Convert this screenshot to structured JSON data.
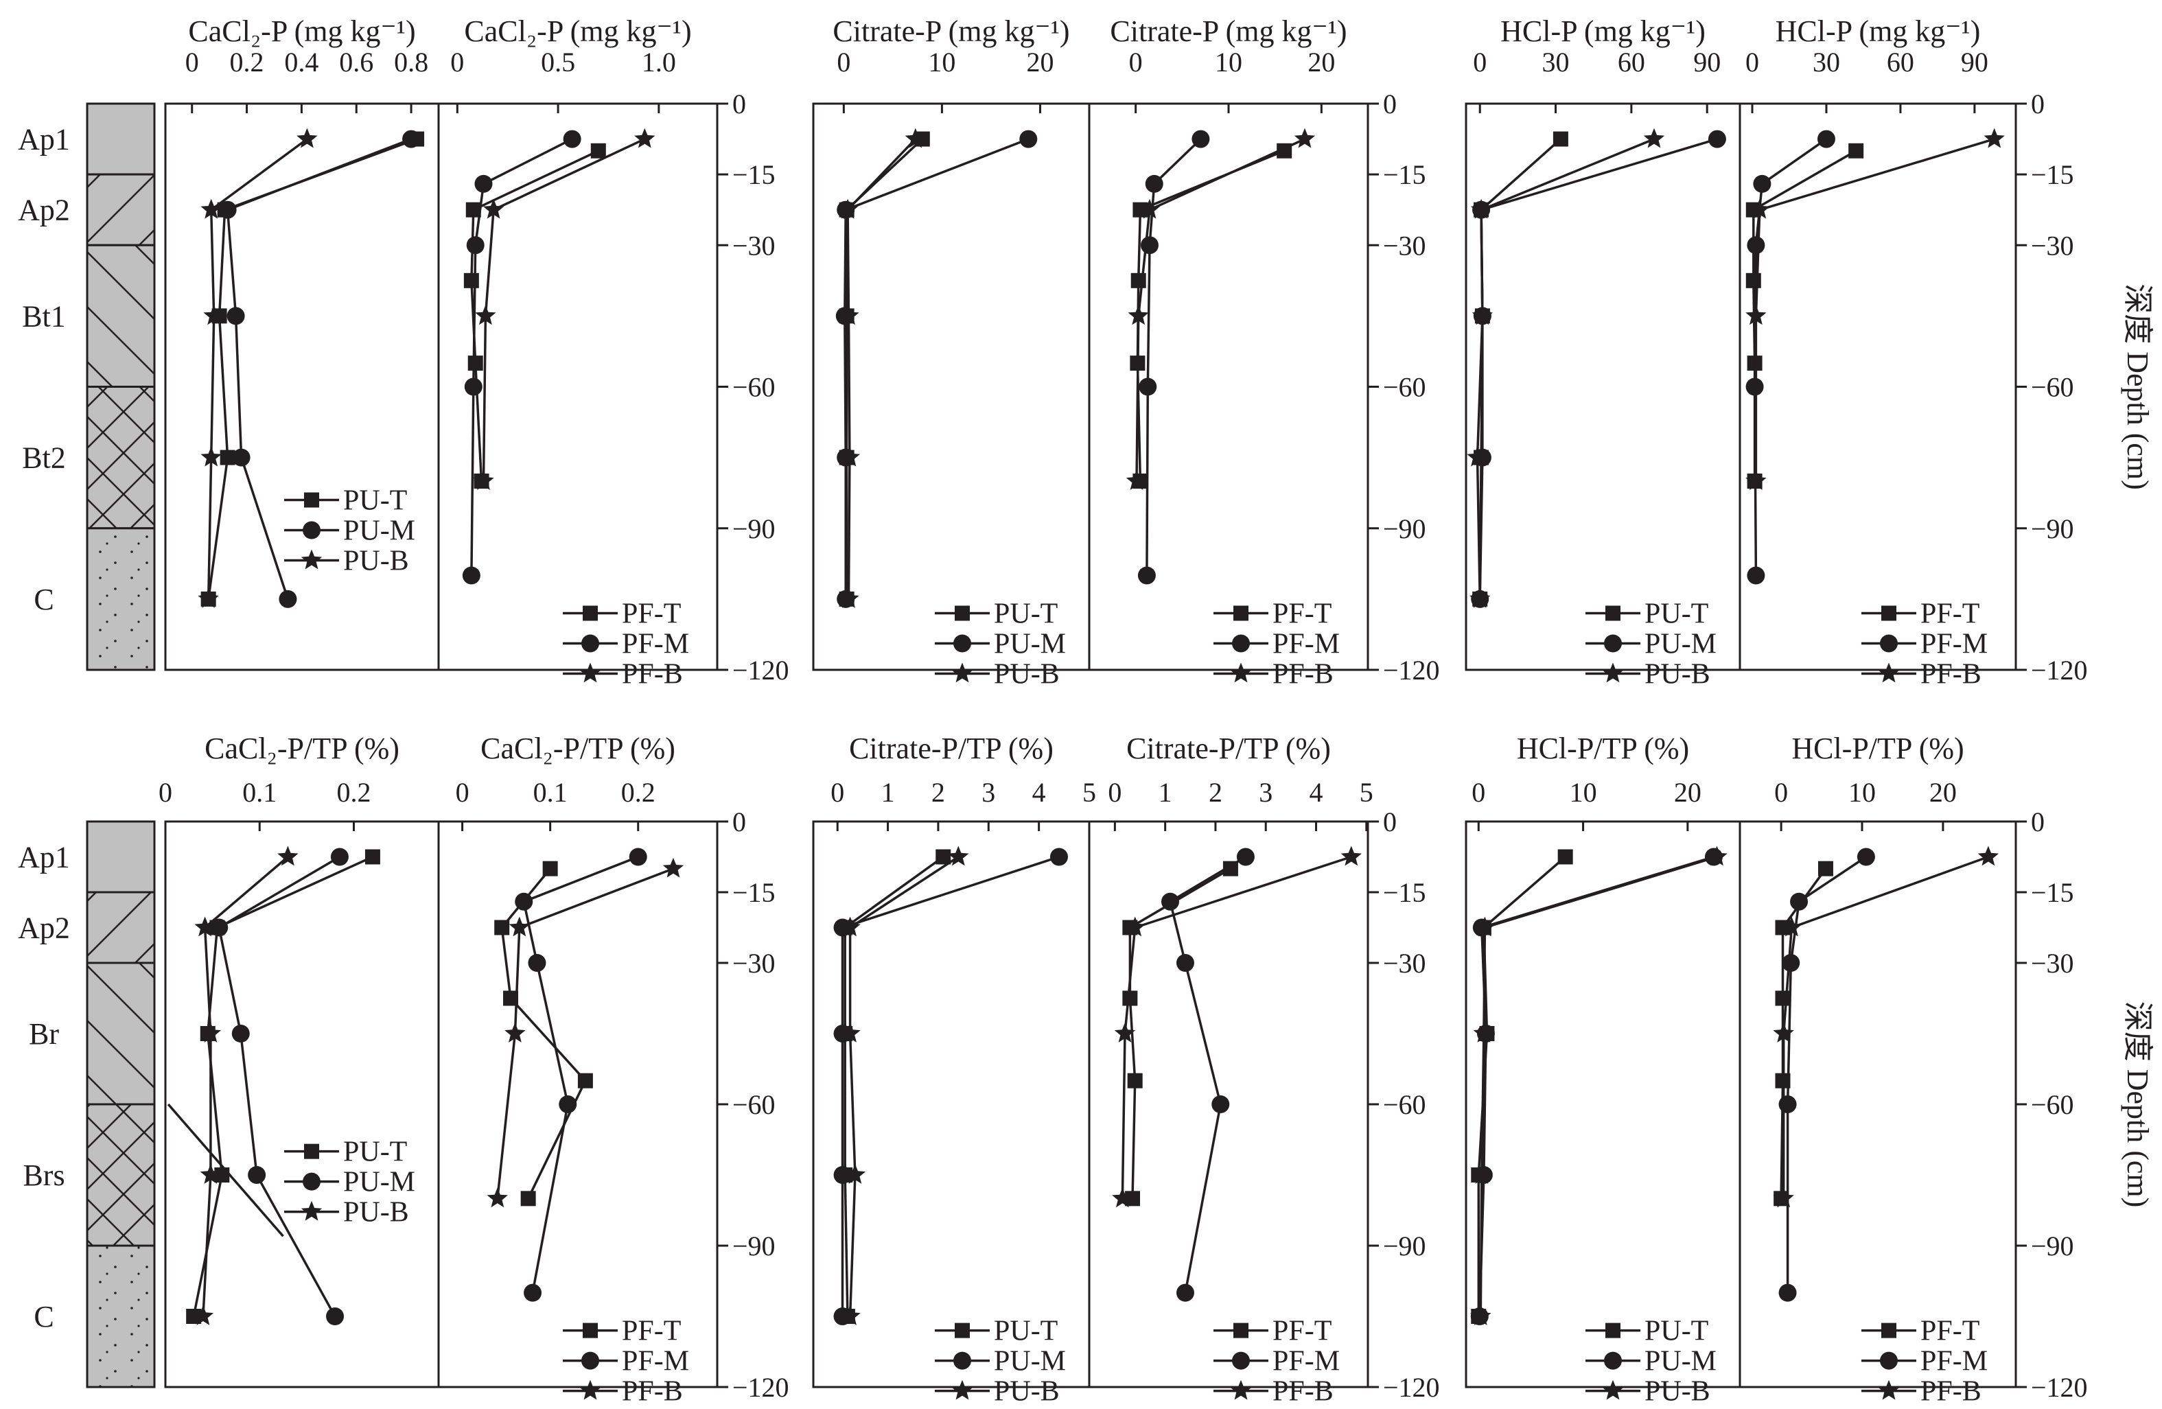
{
  "y_axis": {
    "label": "深度 Depth (cm)",
    "ticks": [
      0,
      -15,
      -30,
      -60,
      -90,
      -120
    ],
    "tick_labels": [
      "0",
      "−15",
      "−30",
      "−60",
      "−90",
      "−120"
    ],
    "ylim": [
      -120,
      0
    ]
  },
  "profiles": [
    {
      "horizons": [
        {
          "name": "Ap1",
          "top": 0,
          "bottom": -15,
          "pattern": "plain"
        },
        {
          "name": "Ap2",
          "top": -15,
          "bottom": -30,
          "pattern": "slash"
        },
        {
          "name": "Bt1",
          "top": -30,
          "bottom": -60,
          "pattern": "backslash"
        },
        {
          "name": "Bt2",
          "top": -60,
          "bottom": -90,
          "pattern": "cross"
        },
        {
          "name": "C",
          "top": -90,
          "bottom": -120,
          "pattern": "dots"
        }
      ]
    },
    {
      "horizons": [
        {
          "name": "Ap1",
          "top": 0,
          "bottom": -15,
          "pattern": "plain"
        },
        {
          "name": "Ap2",
          "top": -15,
          "bottom": -30,
          "pattern": "slash"
        },
        {
          "name": "Br",
          "top": -30,
          "bottom": -60,
          "pattern": "backslash"
        },
        {
          "name": "Brs",
          "top": -60,
          "bottom": -90,
          "pattern": "cross"
        },
        {
          "name": "C",
          "top": -90,
          "bottom": -120,
          "pattern": "dots"
        }
      ]
    }
  ],
  "colors": {
    "line": "#231f20",
    "profile_fill": "#c0c0c0"
  },
  "chart_data": [
    {
      "type": "line",
      "row": 0,
      "title": "CaCl₂-P (mg kg⁻¹)",
      "xlim": [
        -0.097,
        0.9
      ],
      "xticks": [
        0,
        0.2,
        0.4,
        0.6,
        0.8
      ],
      "xtick_labels": [
        "0",
        "0.2",
        "0.4",
        "0.6",
        "0.8"
      ],
      "legend": "center-right",
      "series": [
        {
          "name": "PU-T",
          "marker": "square",
          "x": [
            0.82,
            0.12,
            0.1,
            0.13,
            0.06
          ],
          "y": [
            -7.5,
            -22.5,
            -45,
            -75,
            -105
          ]
        },
        {
          "name": "PU-M",
          "marker": "circle",
          "x": [
            0.8,
            0.13,
            0.16,
            0.18,
            0.35
          ],
          "y": [
            -7.5,
            -22.5,
            -45,
            -75,
            -105
          ]
        },
        {
          "name": "PU-B",
          "marker": "star",
          "x": [
            0.42,
            0.07,
            0.08,
            0.07,
            0.06
          ],
          "y": [
            -7.5,
            -22.5,
            -45,
            -75,
            -105
          ]
        }
      ]
    },
    {
      "type": "line",
      "row": 0,
      "title": "CaCl₂-P (mg kg⁻¹)",
      "xlim": [
        -0.093,
        1.29
      ],
      "xticks": [
        0,
        0.5,
        1.0
      ],
      "xtick_labels": [
        "0",
        "0.5",
        "1.0"
      ],
      "legend": "bottom-right",
      "series": [
        {
          "name": "PF-T",
          "marker": "square",
          "x": [
            0.7,
            0.08,
            0.07,
            0.09,
            0.12
          ],
          "y": [
            -10,
            -22.5,
            -37.5,
            -55,
            -80
          ]
        },
        {
          "name": "PF-M",
          "marker": "circle",
          "x": [
            0.57,
            0.13,
            0.09,
            0.08,
            0.07
          ],
          "y": [
            -7.5,
            -17,
            -30,
            -60,
            -100
          ]
        },
        {
          "name": "PF-B",
          "marker": "star",
          "x": [
            0.93,
            0.18,
            0.14,
            0.13
          ],
          "y": [
            -7.5,
            -22.5,
            -45,
            -80
          ]
        }
      ]
    },
    {
      "type": "line",
      "row": 0,
      "title": "Citrate-P (mg kg⁻¹)",
      "xlim": [
        -3.1,
        25
      ],
      "xticks": [
        0,
        10,
        20
      ],
      "xtick_labels": [
        "0",
        "10",
        "20"
      ],
      "legend": "bottom-right",
      "series": [
        {
          "name": "PU-T",
          "marker": "square",
          "x": [
            8.0,
            0.3,
            0.3,
            0.3,
            0.3
          ],
          "y": [
            -7.5,
            -22.5,
            -45,
            -75,
            -105
          ]
        },
        {
          "name": "PU-M",
          "marker": "circle",
          "x": [
            18.8,
            0.2,
            0.1,
            0.2,
            0.2
          ],
          "y": [
            -7.5,
            -22.5,
            -45,
            -75,
            -105
          ]
        },
        {
          "name": "PU-B",
          "marker": "star",
          "x": [
            7.3,
            0.4,
            0.5,
            0.6,
            0.5
          ],
          "y": [
            -7.5,
            -22.5,
            -45,
            -75,
            -105
          ]
        }
      ]
    },
    {
      "type": "line",
      "row": 0,
      "title": "Citrate-P (mg kg⁻¹)",
      "xlim": [
        -5,
        25
      ],
      "xticks": [
        0,
        10,
        20
      ],
      "xtick_labels": [
        "0",
        "10",
        "20"
      ],
      "legend": "bottom-right",
      "series": [
        {
          "name": "PF-T",
          "marker": "square",
          "x": [
            16.0,
            0.5,
            0.3,
            0.2,
            0.5
          ],
          "y": [
            -10,
            -22.5,
            -37.5,
            -55,
            -80
          ]
        },
        {
          "name": "PF-M",
          "marker": "circle",
          "x": [
            7.0,
            2.0,
            1.5,
            1.3,
            1.2
          ],
          "y": [
            -7.5,
            -17,
            -30,
            -60,
            -100
          ]
        },
        {
          "name": "PF-B",
          "marker": "star",
          "x": [
            18.2,
            1.5,
            0.3,
            0.1
          ],
          "y": [
            -7.5,
            -22.5,
            -45,
            -80
          ]
        }
      ]
    },
    {
      "type": "line",
      "row": 0,
      "title": "HCl-P (mg kg⁻¹)",
      "xlim": [
        -5.5,
        103
      ],
      "xticks": [
        0,
        30,
        60,
        90
      ],
      "xtick_labels": [
        "0",
        "30",
        "60",
        "90"
      ],
      "legend": "bottom-right",
      "series": [
        {
          "name": "PU-T",
          "marker": "square",
          "x": [
            32,
            0.5,
            1,
            0.5,
            0
          ],
          "y": [
            -7.5,
            -22.5,
            -45,
            -75,
            -105
          ]
        },
        {
          "name": "PU-M",
          "marker": "circle",
          "x": [
            94,
            0.5,
            1,
            1,
            0
          ],
          "y": [
            -7.5,
            -22.5,
            -45,
            -75,
            -105
          ]
        },
        {
          "name": "PU-B",
          "marker": "star",
          "x": [
            69,
            0.5,
            1,
            -1,
            0
          ],
          "y": [
            -7.5,
            -22.5,
            -45,
            -75,
            -105
          ]
        }
      ]
    },
    {
      "type": "line",
      "row": 0,
      "title": "HCl-P (mg kg⁻¹)",
      "xlim": [
        -5,
        106.7
      ],
      "xticks": [
        0,
        30,
        60,
        90
      ],
      "xtick_labels": [
        "0",
        "30",
        "60",
        "90"
      ],
      "legend": "bottom-right",
      "series": [
        {
          "name": "PF-T",
          "marker": "square",
          "x": [
            42,
            0.5,
            0.5,
            1,
            1
          ],
          "y": [
            -10,
            -22.5,
            -37.5,
            -55,
            -80
          ]
        },
        {
          "name": "PF-M",
          "marker": "circle",
          "x": [
            30,
            4,
            1.5,
            1,
            1.5
          ],
          "y": [
            -7.5,
            -17,
            -30,
            -60,
            -100
          ]
        },
        {
          "name": "PF-B",
          "marker": "star",
          "x": [
            98,
            3,
            1.5,
            1.5
          ],
          "y": [
            -7.5,
            -22.5,
            -45,
            -80
          ]
        }
      ]
    },
    {
      "type": "line",
      "row": 1,
      "title": "CaCl₂-P/TP (%)",
      "xlim": [
        0,
        0.29
      ],
      "xticks": [
        0,
        0.1,
        0.2
      ],
      "xtick_labels": [
        "0",
        "0.1",
        "0.2"
      ],
      "legend": "center-right",
      "extra_line": {
        "x": [
          0.003,
          0.125
        ],
        "y": [
          -60,
          -88
        ]
      },
      "series": [
        {
          "name": "PU-T",
          "marker": "square",
          "x": [
            0.22,
            0.055,
            0.045,
            0.06,
            0.03
          ],
          "y": [
            -7.5,
            -22.5,
            -45,
            -75,
            -105
          ]
        },
        {
          "name": "PU-M",
          "marker": "circle",
          "x": [
            0.185,
            0.057,
            0.08,
            0.097,
            0.18
          ],
          "y": [
            -7.5,
            -22.5,
            -45,
            -75,
            -105
          ]
        },
        {
          "name": "PU-B",
          "marker": "star",
          "x": [
            0.13,
            0.042,
            0.048,
            0.048,
            0.04
          ],
          "y": [
            -7.5,
            -22.5,
            -45,
            -75,
            -105
          ]
        }
      ]
    },
    {
      "type": "line",
      "row": 1,
      "title": "CaCl₂-P/TP (%)",
      "xlim": [
        -0.027,
        0.29
      ],
      "xticks": [
        0,
        0.1,
        0.2
      ],
      "xtick_labels": [
        "0",
        "0.1",
        "0.2"
      ],
      "legend": "bottom-right",
      "series": [
        {
          "name": "PF-T",
          "marker": "square",
          "x": [
            0.1,
            0.045,
            0.055,
            0.14,
            0.075
          ],
          "y": [
            -10,
            -22.5,
            -37.5,
            -55,
            -80
          ]
        },
        {
          "name": "PF-M",
          "marker": "circle",
          "x": [
            0.2,
            0.07,
            0.085,
            0.12,
            0.08
          ],
          "y": [
            -7.5,
            -17,
            -30,
            -60,
            -100
          ]
        },
        {
          "name": "PF-B",
          "marker": "star",
          "x": [
            0.24,
            0.065,
            0.06,
            0.04
          ],
          "y": [
            -10,
            -22.5,
            -45,
            -80
          ]
        }
      ]
    },
    {
      "type": "line",
      "row": 1,
      "title": "Citrate-P/TP (%)",
      "xlim": [
        -0.48,
        5.0
      ],
      "xticks": [
        0,
        1,
        2,
        3,
        4,
        5
      ],
      "xtick_labels": [
        "0",
        "1",
        "2",
        "3",
        "4",
        "5"
      ],
      "legend": "bottom-right",
      "series": [
        {
          "name": "PU-T",
          "marker": "square",
          "x": [
            2.1,
            0.15,
            0.15,
            0.15,
            0.2
          ],
          "y": [
            -7.5,
            -22.5,
            -45,
            -75,
            -105
          ]
        },
        {
          "name": "PU-M",
          "marker": "circle",
          "x": [
            4.4,
            0.1,
            0.1,
            0.1,
            0.1
          ],
          "y": [
            -7.5,
            -22.5,
            -45,
            -75,
            -105
          ]
        },
        {
          "name": "PU-B",
          "marker": "star",
          "x": [
            2.4,
            0.25,
            0.25,
            0.35,
            0.25
          ],
          "y": [
            -7.5,
            -22.5,
            -45,
            -75,
            -105
          ]
        }
      ]
    },
    {
      "type": "line",
      "row": 1,
      "title": "Citrate-P/TP (%)",
      "xlim": [
        -0.51,
        5.03
      ],
      "xticks": [
        0,
        1,
        2,
        3,
        4,
        5
      ],
      "xtick_labels": [
        "0",
        "1",
        "2",
        "3",
        "4",
        "5"
      ],
      "legend": "bottom-right",
      "series": [
        {
          "name": "PF-T",
          "marker": "square",
          "x": [
            2.3,
            0.3,
            0.3,
            0.4,
            0.35
          ],
          "y": [
            -10,
            -22.5,
            -37.5,
            -55,
            -80
          ]
        },
        {
          "name": "PF-M",
          "marker": "circle",
          "x": [
            2.6,
            1.1,
            1.4,
            2.1,
            1.4
          ],
          "y": [
            -7.5,
            -17,
            -30,
            -60,
            -100
          ]
        },
        {
          "name": "PF-B",
          "marker": "star",
          "x": [
            4.7,
            0.4,
            0.2,
            0.15
          ],
          "y": [
            -7.5,
            -22.5,
            -45,
            -80
          ]
        }
      ]
    },
    {
      "type": "line",
      "row": 1,
      "title": "HCl-P/TP (%)",
      "xlim": [
        -1.2,
        25
      ],
      "xticks": [
        0,
        10,
        20
      ],
      "xtick_labels": [
        "0",
        "10",
        "20"
      ],
      "legend": "bottom-right",
      "series": [
        {
          "name": "PU-T",
          "marker": "square",
          "x": [
            8.3,
            0.5,
            0.8,
            0,
            0
          ],
          "y": [
            -7.5,
            -22.5,
            -45,
            -75,
            -105
          ]
        },
        {
          "name": "PU-M",
          "marker": "circle",
          "x": [
            22.5,
            0.3,
            0.7,
            0.5,
            0.1
          ],
          "y": [
            -7.5,
            -22.5,
            -45,
            -75,
            -105
          ]
        },
        {
          "name": "PU-B",
          "marker": "star",
          "x": [
            22.8,
            0.6,
            0.5,
            0.3,
            0.2
          ],
          "y": [
            -7.5,
            -22.5,
            -45,
            -75,
            -105
          ]
        }
      ]
    },
    {
      "type": "line",
      "row": 1,
      "title": "HCl-P/TP (%)",
      "xlim": [
        -5.1,
        29
      ],
      "xticks": [
        0,
        10,
        20
      ],
      "xtick_labels": [
        "0",
        "10",
        "20"
      ],
      "legend": "bottom-right",
      "series": [
        {
          "name": "PF-T",
          "marker": "square",
          "x": [
            5.5,
            0.2,
            0.2,
            0.2,
            0
          ],
          "y": [
            -10,
            -22.5,
            -37.5,
            -55,
            -80
          ]
        },
        {
          "name": "PF-M",
          "marker": "circle",
          "x": [
            10.5,
            2.2,
            1.2,
            0.8,
            0.8
          ],
          "y": [
            -7.5,
            -17,
            -30,
            -60,
            -100
          ]
        },
        {
          "name": "PF-B",
          "marker": "star",
          "x": [
            25.6,
            1.3,
            0.3,
            0.3
          ],
          "y": [
            -7.5,
            -22.5,
            -45,
            -80
          ]
        }
      ]
    }
  ]
}
